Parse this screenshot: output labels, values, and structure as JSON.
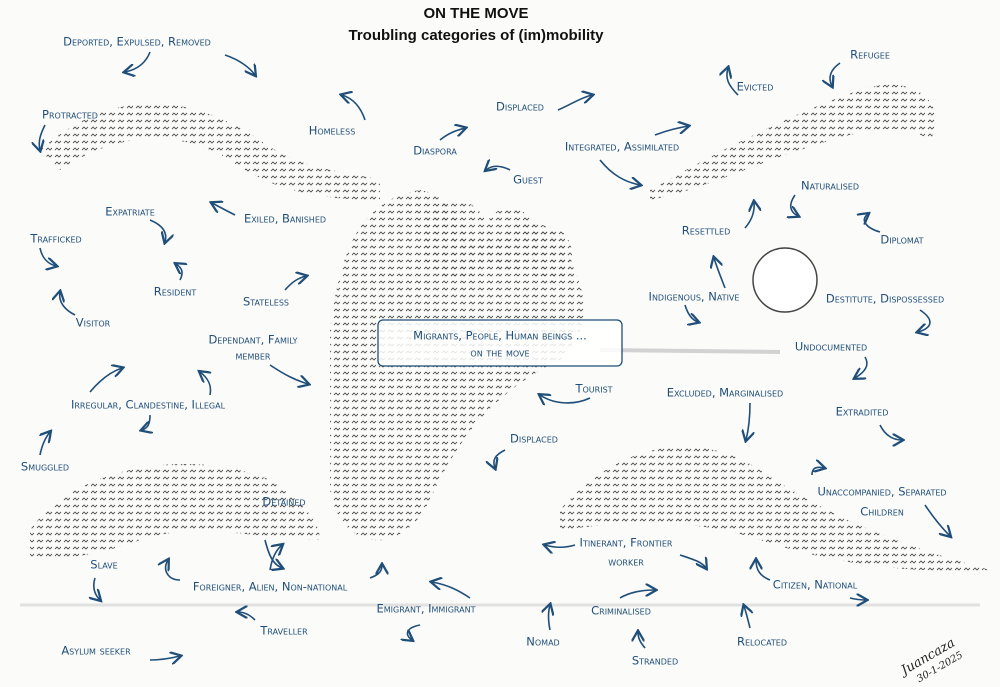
{
  "title": "ON THE MOVE",
  "subtitle": "Troubling categories of (im)mobility",
  "center_label": [
    "Migrants, People, Human beings ...",
    "on the move"
  ],
  "labels": [
    "Deported, Expulsed, Removed",
    "Protracted",
    "Homeless",
    "Displaced",
    "Evicted",
    "Refugee",
    "Diaspora",
    "Guest",
    "Integrated, Assimilated",
    "Naturalised",
    "Expatriate",
    "Exiled, Banished",
    "Trafficked",
    "Resettled",
    "Diplomat",
    "Resident",
    "Stateless",
    "Indigenous, Native",
    "Destitute, Dispossessed",
    "Visitor",
    "Dependant, Family",
    "member",
    "Undocumented",
    "Tourist",
    "Excluded, Marginalised",
    "Irregular, Clandestine, Illegal",
    "Extradited",
    "Displaced",
    "Smuggled",
    "Unaccompanied, Separated",
    "Children",
    "Detained",
    "Itinerant, Frontier",
    "worker",
    "Slave",
    "Foreigner, Alien, Non-national",
    "Citizen, National",
    "Emigrant, Immigrant",
    "Criminalised",
    "Traveller",
    "Nomad",
    "Relocated",
    "Asylum seeker",
    "Stranded"
  ],
  "signature": [
    "Juancaza",
    "30-1-2025"
  ]
}
